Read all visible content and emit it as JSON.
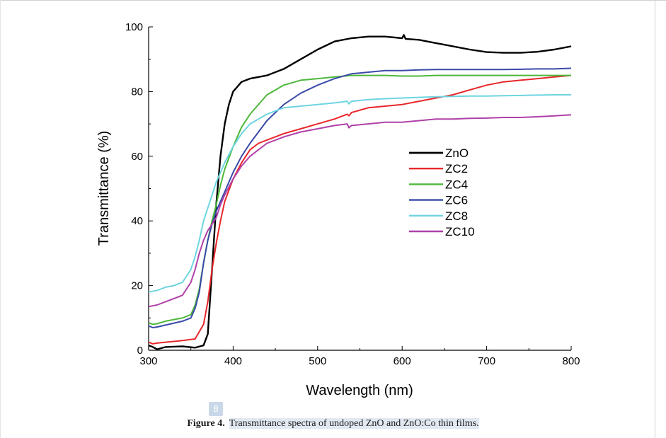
{
  "chart_data": {
    "type": "line",
    "xlabel": "Wavelength (nm)",
    "ylabel": "Transmittance (%)",
    "xlim": [
      300,
      800
    ],
    "ylim": [
      0,
      100
    ],
    "xticks": [
      300,
      400,
      500,
      600,
      700,
      800
    ],
    "yticks": [
      0,
      20,
      40,
      60,
      80,
      100
    ],
    "legend_position": "center-right",
    "series": [
      {
        "name": "ZnO",
        "color": "#000000",
        "x": [
          300,
          305,
          310,
          320,
          340,
          355,
          365,
          370,
          375,
          380,
          385,
          390,
          395,
          400,
          410,
          420,
          440,
          460,
          480,
          500,
          520,
          540,
          560,
          580,
          600,
          602,
          604,
          620,
          640,
          660,
          680,
          700,
          720,
          740,
          760,
          780,
          800
        ],
        "y": [
          1.5,
          1.0,
          0.3,
          1.0,
          1.2,
          0.8,
          1.5,
          5,
          25,
          45,
          60,
          70,
          76,
          80,
          83,
          84,
          85,
          87,
          90,
          93,
          95.5,
          96.5,
          97,
          97,
          96.5,
          97.5,
          96.3,
          96,
          95,
          94,
          93,
          92.2,
          92,
          92,
          92.3,
          93,
          94
        ]
      },
      {
        "name": "ZC2",
        "color": "#e8262a",
        "x": [
          300,
          305,
          310,
          320,
          340,
          355,
          365,
          370,
          375,
          380,
          385,
          390,
          400,
          410,
          420,
          430,
          440,
          450,
          460,
          480,
          500,
          520,
          535,
          537,
          540,
          560,
          580,
          600,
          620,
          640,
          660,
          680,
          700,
          720,
          740,
          760,
          780,
          800
        ],
        "y": [
          2.5,
          2.0,
          2.2,
          2.5,
          3.0,
          3.5,
          8,
          15,
          25,
          33,
          40,
          46,
          53,
          58,
          62,
          64,
          65,
          66,
          67,
          68.5,
          70,
          71.5,
          73,
          72.5,
          73.5,
          75,
          75.5,
          76,
          77,
          78,
          79,
          80.5,
          82,
          83,
          83.5,
          84,
          84.5,
          85
        ]
      },
      {
        "name": "ZC4",
        "color": "#4db83a",
        "x": [
          300,
          305,
          310,
          320,
          340,
          350,
          355,
          360,
          365,
          370,
          375,
          380,
          385,
          390,
          400,
          410,
          420,
          440,
          460,
          480,
          500,
          520,
          540,
          560,
          580,
          600,
          620,
          640,
          660,
          680,
          700,
          720,
          740,
          760,
          780,
          800
        ],
        "y": [
          8.5,
          8.0,
          8.2,
          9.0,
          10,
          11,
          14,
          19,
          27,
          34,
          40,
          45,
          51,
          56,
          63,
          69,
          73,
          79,
          82,
          83.5,
          84,
          84.5,
          85,
          85,
          85,
          84.8,
          84.8,
          85,
          85,
          85,
          85,
          85,
          85,
          85,
          85,
          85
        ]
      },
      {
        "name": "ZC6",
        "color": "#3a4aa8",
        "x": [
          300,
          305,
          310,
          320,
          340,
          350,
          355,
          360,
          365,
          370,
          375,
          380,
          390,
          400,
          410,
          420,
          440,
          460,
          480,
          500,
          520,
          540,
          560,
          580,
          600,
          620,
          640,
          660,
          680,
          700,
          720,
          740,
          760,
          780,
          800
        ],
        "y": [
          7.5,
          7.0,
          7.2,
          7.8,
          9,
          10,
          13,
          18,
          27,
          34,
          39,
          43,
          49,
          55,
          60,
          64,
          71,
          76,
          79.5,
          82,
          84,
          85.5,
          86,
          86.5,
          86.5,
          86.7,
          86.8,
          86.8,
          86.8,
          86.8,
          86.8,
          86.9,
          87,
          87,
          87.2
        ]
      },
      {
        "name": "ZC8",
        "color": "#6dd5e0",
        "x": [
          300,
          310,
          320,
          330,
          340,
          350,
          355,
          360,
          365,
          370,
          375,
          380,
          385,
          390,
          400,
          410,
          420,
          440,
          460,
          480,
          500,
          520,
          535,
          537,
          540,
          560,
          580,
          600,
          620,
          640,
          660,
          680,
          700,
          720,
          740,
          760,
          780,
          800
        ],
        "y": [
          18,
          18.5,
          19.5,
          20,
          21,
          25,
          29,
          34,
          40,
          44,
          48,
          52,
          55,
          58,
          63,
          67,
          70,
          73,
          75,
          75.5,
          76,
          76.5,
          77,
          76.2,
          77,
          77.5,
          77.8,
          78,
          78.2,
          78.4,
          78.5,
          78.6,
          78.6,
          78.7,
          78.8,
          78.9,
          79,
          79
        ]
      },
      {
        "name": "ZC10",
        "color": "#b040a8",
        "x": [
          300,
          310,
          320,
          330,
          340,
          350,
          355,
          360,
          365,
          370,
          375,
          380,
          385,
          390,
          400,
          410,
          420,
          440,
          460,
          480,
          500,
          520,
          535,
          537,
          540,
          560,
          580,
          600,
          620,
          640,
          660,
          680,
          700,
          720,
          740,
          760,
          780,
          800
        ],
        "y": [
          13.5,
          14,
          15,
          16,
          17,
          21,
          25,
          30,
          34,
          37,
          39,
          41,
          45,
          48,
          53,
          57,
          60,
          64,
          66,
          67.5,
          68.5,
          69.5,
          70,
          68.8,
          69.5,
          70,
          70.5,
          70.5,
          71,
          71.5,
          71.5,
          71.7,
          71.8,
          72,
          72,
          72.2,
          72.5,
          72.8
        ]
      }
    ]
  },
  "page_badge": "8",
  "caption": {
    "label": "Figure 4.",
    "text": "Transmittance spectra of undoped ZnO and ZnO:Co thin films."
  }
}
